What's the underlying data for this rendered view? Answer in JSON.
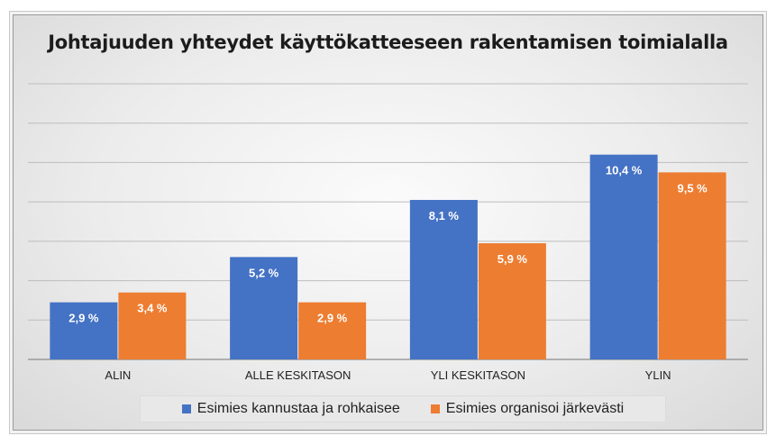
{
  "chart_data": {
    "type": "bar",
    "title": "Johtajuuden yhteydet käyttökatteeseen rakentamisen toimialalla",
    "categories": [
      "ALIN",
      "ALLE KESKITASON",
      "YLI KESKITASON",
      "YLIN"
    ],
    "series": [
      {
        "name": "Esimies kannustaa ja rohkaisee",
        "values": [
          2.9,
          5.2,
          8.1,
          10.4
        ],
        "labels": [
          "2,9 %",
          "5,2 %",
          "8,1 %",
          "10,4 %"
        ],
        "color": "#4472c4"
      },
      {
        "name": "Esimies organisoi järkevästi",
        "values": [
          3.4,
          2.9,
          5.9,
          9.5
        ],
        "labels": [
          "3,4 %",
          "2,9 %",
          "5,9 %",
          "9,5 %"
        ],
        "color": "#ed7d31"
      }
    ],
    "xlabel": "",
    "ylabel": "",
    "ylim": [
      0,
      14
    ],
    "grid": true,
    "legend_position": "bottom"
  }
}
